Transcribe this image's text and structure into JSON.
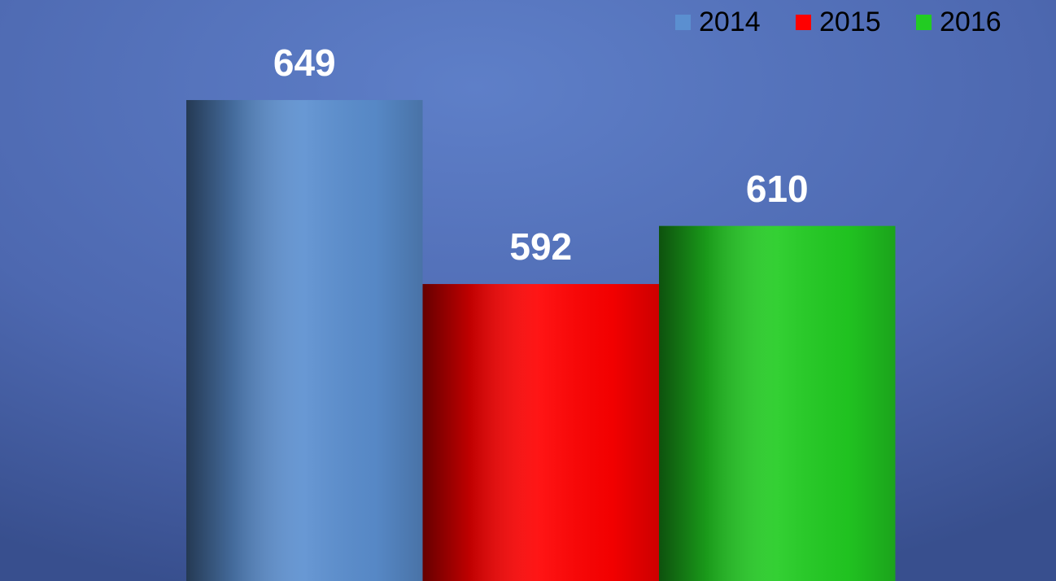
{
  "chart_data": {
    "type": "bar",
    "categories": [
      null
    ],
    "series": [
      {
        "name": "2014",
        "color": "#5b8fd0",
        "values": [
          649
        ]
      },
      {
        "name": "2015",
        "color": "#ff0000",
        "values": [
          592
        ]
      },
      {
        "name": "2016",
        "color": "#22cc22",
        "values": [
          610
        ]
      }
    ],
    "ylim": [
      500,
      680
    ],
    "legend": "top-right"
  }
}
